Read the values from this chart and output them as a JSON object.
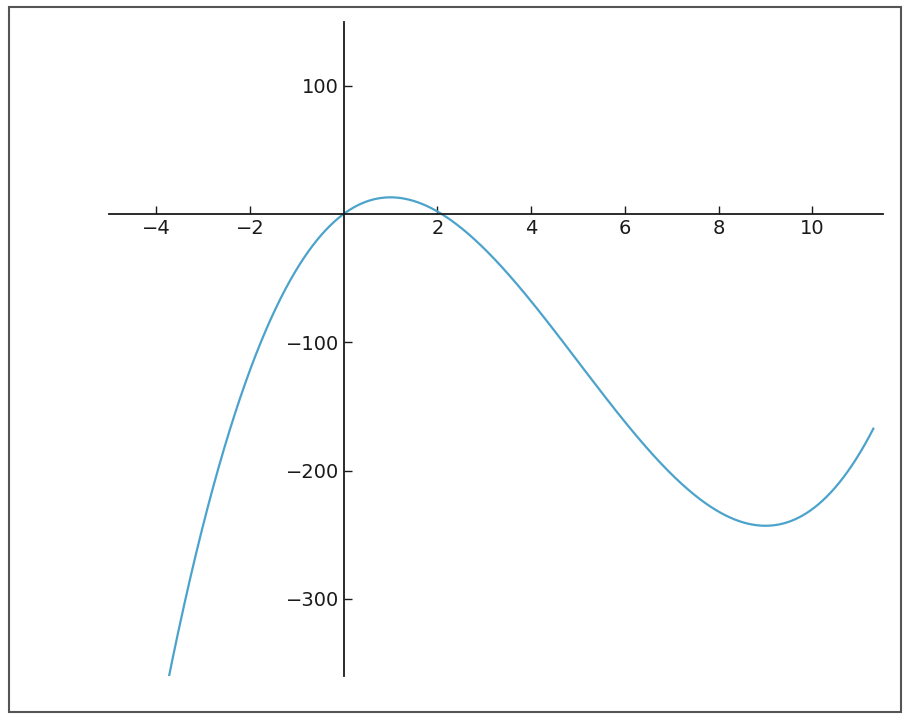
{
  "xlim": [
    -5,
    11.5
  ],
  "ylim": [
    -360,
    150
  ],
  "xticks": [
    -4,
    -2,
    2,
    4,
    6,
    8,
    10
  ],
  "yticks": [
    100,
    -100,
    -200,
    -300
  ],
  "line_color": "#4ba3cc",
  "line_width": 1.6,
  "x_start": -4.8,
  "x_end": 11.3,
  "background_color": "#ffffff",
  "spine_color": "#1a1a1a",
  "tick_color": "#1a1a1a",
  "a": 1,
  "b": -15.0,
  "c": 27.0,
  "d": 0,
  "tick_fontsize": 14,
  "border_color": "#555555",
  "border_linewidth": 1.5
}
